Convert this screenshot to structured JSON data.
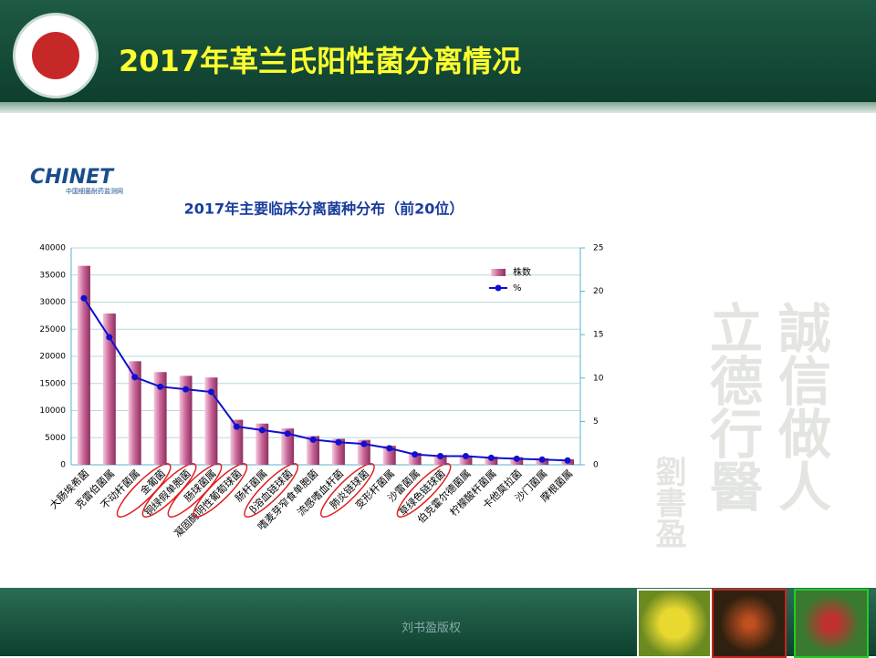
{
  "slide": {
    "title": "2017年革兰氏阳性菌分离情况",
    "logo": "CHINET",
    "logo_sub": "中国细菌耐药监测网",
    "calligraphy": [
      "誠信做人",
      "立德行醫",
      "劉書盈"
    ],
    "footer": "刘书盈版权"
  },
  "chart_data": {
    "type": "bar-line",
    "title": "2017年主要临床分离菌种分布（前20位）",
    "categories": [
      "大肠埃希菌",
      "克雷伯菌属",
      "不动杆菌属",
      "金葡菌",
      "铜绿假单胞菌",
      "肠球菌属",
      "凝固酶阴性葡萄球菌",
      "肠杆菌属",
      "β溶血链球菌",
      "嗜麦芽窄食单胞菌",
      "流感嗜血杆菌",
      "肺炎链球菌",
      "变形杆菌属",
      "沙雷菌属",
      "草绿色链球菌",
      "伯克霍尔德菌属",
      "柠檬酸杆菌属",
      "卡他莫拉菌",
      "沙门菌属",
      "摩根菌属"
    ],
    "series": [
      {
        "name": "株数",
        "color": "#c86496",
        "values": [
          36700,
          27900,
          19100,
          17100,
          16400,
          16100,
          8300,
          7600,
          6700,
          5300,
          4800,
          4600,
          3500,
          2200,
          1800,
          1700,
          1500,
          1400,
          1200,
          1000
        ]
      },
      {
        "name": "%",
        "color": "#1010d0",
        "axis": "y2",
        "values": [
          19.2,
          14.7,
          10.1,
          9.0,
          8.7,
          8.4,
          4.4,
          4.0,
          3.6,
          2.9,
          2.6,
          2.4,
          1.9,
          1.2,
          1.0,
          1.0,
          0.8,
          0.7,
          0.6,
          0.5
        ]
      }
    ],
    "ylim": [
      0,
      40000
    ],
    "yticks": [
      0,
      5000,
      10000,
      15000,
      20000,
      25000,
      30000,
      35000,
      40000
    ],
    "y2lim": [
      0,
      25
    ],
    "y2ticks": [
      0,
      5,
      10,
      15,
      20,
      25
    ],
    "grid": true
  }
}
